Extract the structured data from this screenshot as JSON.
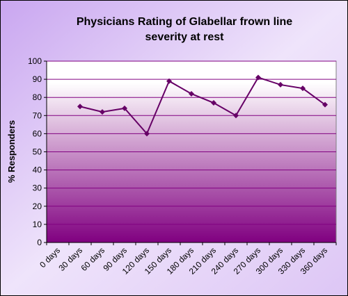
{
  "chart_data": {
    "type": "line",
    "title": [
      "Physicians Rating of Glabellar frown line",
      "severity at rest"
    ],
    "y_label": "% Responders",
    "categories": [
      "0 days",
      "30 days",
      "60 days",
      "90 days",
      "120 days",
      "150 days",
      "180 days",
      "210 days",
      "240 days",
      "270 days",
      "300 days",
      "330 days",
      "360 days"
    ],
    "series": [
      {
        "name": "Physicians Rating",
        "color": "#660066",
        "values": [
          null,
          75,
          72,
          74,
          60,
          89,
          82,
          77,
          70,
          91,
          87,
          85,
          76
        ]
      }
    ],
    "ylim": [
      0,
      100
    ],
    "yticks": [
      0,
      10,
      20,
      30,
      40,
      50,
      60,
      70,
      80,
      90,
      100
    ],
    "grid": true
  }
}
